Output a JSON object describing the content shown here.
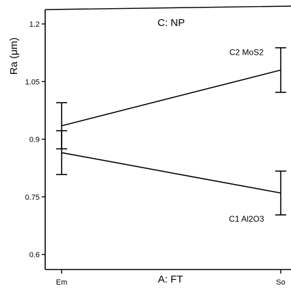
{
  "chart_data": {
    "type": "line",
    "title": "C: NP",
    "xlabel": "A: FT",
    "ylabel": "Ra (μm)",
    "categories": [
      "Em",
      "So"
    ],
    "ylim": [
      0.55,
      1.25
    ],
    "yticks": [
      0.6,
      0.75,
      0.9,
      1.05,
      1.2
    ],
    "ytick_labels": [
      "0.6",
      "0.75",
      "0.9",
      "1.05",
      "1.2"
    ],
    "grid": false,
    "series": [
      {
        "name": "C2 MoS2",
        "values": [
          0.935,
          1.08
        ],
        "error_low": [
          0.875,
          1.022
        ],
        "error_high": [
          0.995,
          1.138
        ]
      },
      {
        "name": "C1 Al2O3",
        "values": [
          0.865,
          0.76
        ],
        "error_low": [
          0.808,
          0.703
        ],
        "error_high": [
          0.922,
          0.817
        ]
      }
    ]
  }
}
